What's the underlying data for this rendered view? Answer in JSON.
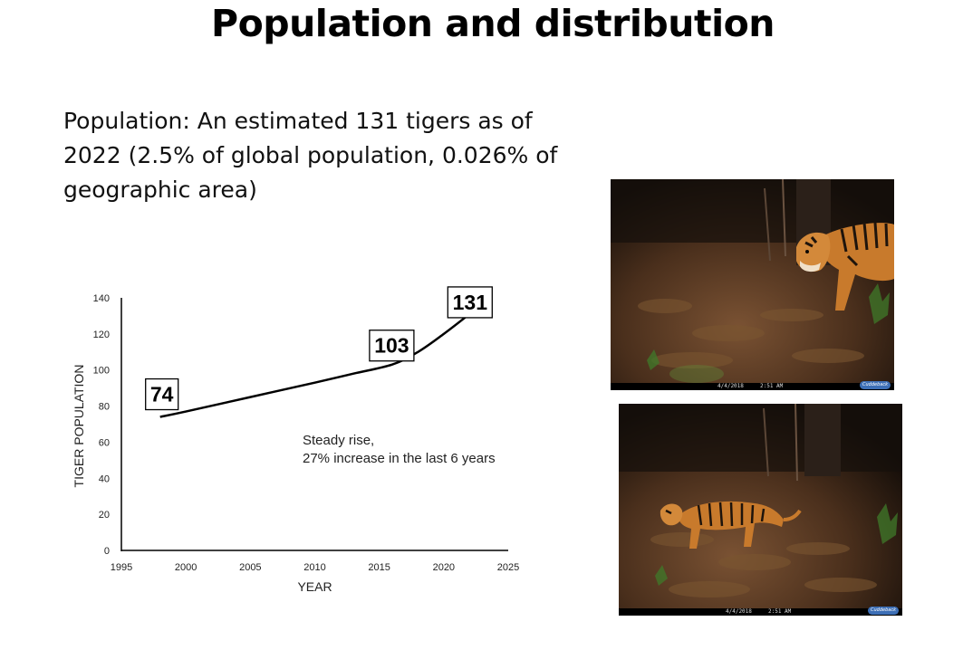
{
  "slide": {
    "title": "Population and distribution",
    "body": "Population: An estimated 131 tigers as of 2022 (2.5% of global population, 0.026% of geographic area)"
  },
  "chart_data": {
    "type": "line",
    "title": "",
    "xlabel": "YEAR",
    "ylabel": "TIGER POPULATION",
    "xlim": [
      1995,
      2025
    ],
    "ylim": [
      0,
      140
    ],
    "x_ticks": [
      1995,
      2000,
      2005,
      2010,
      2015,
      2020,
      2025
    ],
    "y_ticks": [
      0,
      20,
      40,
      60,
      80,
      100,
      120,
      140
    ],
    "grid": false,
    "series": [
      {
        "x": [
          1998,
          2000,
          2005,
          2010,
          2013,
          2016,
          2018,
          2020,
          2022
        ],
        "y": [
          74,
          77,
          85,
          93,
          98,
          103,
          110,
          120,
          131
        ]
      }
    ],
    "data_labels": [
      {
        "x": 1998,
        "y": 74,
        "text": "74"
      },
      {
        "x": 2016,
        "y": 103,
        "text": "103"
      },
      {
        "x": 2022,
        "y": 131,
        "text": "131"
      }
    ],
    "annotation": {
      "lines": [
        "Steady rise,",
        "27% increase in the last 6 years"
      ]
    }
  },
  "photos": [
    {
      "name": "camera-trap-photo-adult-tiger",
      "date": "4/4/2018",
      "time": "2:51 AM",
      "brand": "Cuddeback"
    },
    {
      "name": "camera-trap-photo-walking-tiger",
      "date": "4/4/2018",
      "time": "2:51 AM",
      "brand": "Cuddeback"
    }
  ],
  "colors": {
    "forest_floor": "#5a3a22",
    "night_background": "#1a120c",
    "tiger_orange": "#c87a2c",
    "foliage": "#3f7a2a"
  }
}
